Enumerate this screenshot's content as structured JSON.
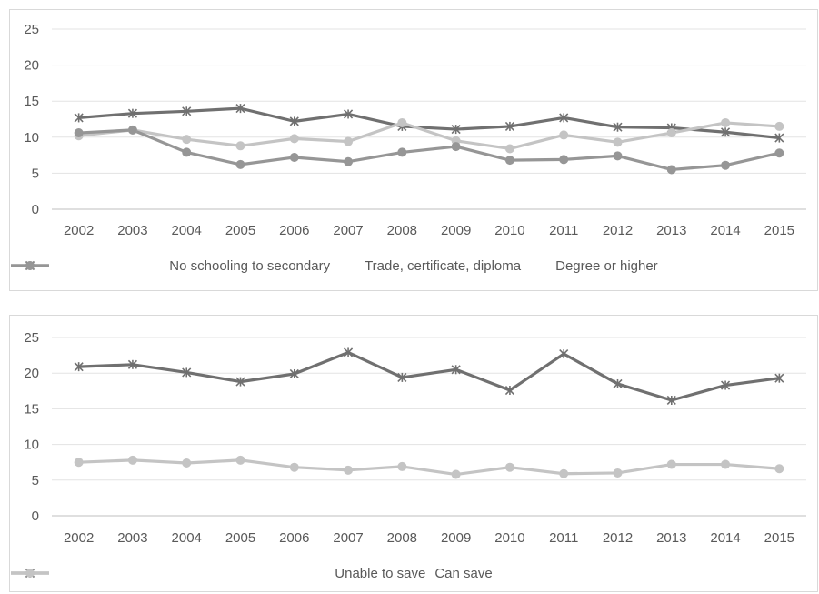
{
  "chart_data": [
    {
      "type": "line",
      "title": "",
      "xlabel": "",
      "ylabel": "",
      "x": [
        "2002",
        "2003",
        "2004",
        "2005",
        "2006",
        "2007",
        "2008",
        "2009",
        "2010",
        "2011",
        "2012",
        "2013",
        "2014",
        "2015"
      ],
      "ylim": [
        0,
        25
      ],
      "yticks": [
        0,
        5,
        10,
        15,
        20,
        25
      ],
      "grid": true,
      "legend": "bottom",
      "series": [
        {
          "name": "No schooling to secondary",
          "color": "#707070",
          "marker": "star",
          "values": [
            12.7,
            13.3,
            13.6,
            14.0,
            12.2,
            13.2,
            11.5,
            11.1,
            11.5,
            12.7,
            11.4,
            11.3,
            10.7,
            9.9
          ]
        },
        {
          "name": "Trade, certificate, diploma",
          "color": "#c4c4c4",
          "marker": "circle",
          "values": [
            10.2,
            11.0,
            9.7,
            8.8,
            9.8,
            9.4,
            12.0,
            9.5,
            8.4,
            10.3,
            9.3,
            10.6,
            12.0,
            11.5
          ]
        },
        {
          "name": "Degree or higher",
          "color": "#969696",
          "marker": "circle",
          "values": [
            10.6,
            11.0,
            7.9,
            6.2,
            7.2,
            6.6,
            7.9,
            8.7,
            6.8,
            6.9,
            7.4,
            5.5,
            6.1,
            7.8
          ]
        }
      ]
    },
    {
      "type": "line",
      "title": "",
      "xlabel": "",
      "ylabel": "",
      "x": [
        "2002",
        "2003",
        "2004",
        "2005",
        "2006",
        "2007",
        "2008",
        "2009",
        "2010",
        "2011",
        "2012",
        "2013",
        "2014",
        "2015"
      ],
      "ylim": [
        0,
        25
      ],
      "yticks": [
        0,
        5,
        10,
        15,
        20,
        25
      ],
      "grid": true,
      "legend": "bottom",
      "series": [
        {
          "name": "Unable to save",
          "color": "#707070",
          "marker": "star",
          "values": [
            20.9,
            21.2,
            20.1,
            18.8,
            19.9,
            22.9,
            19.4,
            20.5,
            17.6,
            22.7,
            18.5,
            16.2,
            18.3,
            19.3
          ]
        },
        {
          "name": "Can save",
          "color": "#c4c4c4",
          "marker": "circle",
          "values": [
            7.5,
            7.8,
            7.4,
            7.8,
            6.8,
            6.4,
            6.9,
            5.8,
            6.8,
            5.9,
            6.0,
            7.2,
            7.2,
            6.6
          ]
        }
      ]
    }
  ]
}
